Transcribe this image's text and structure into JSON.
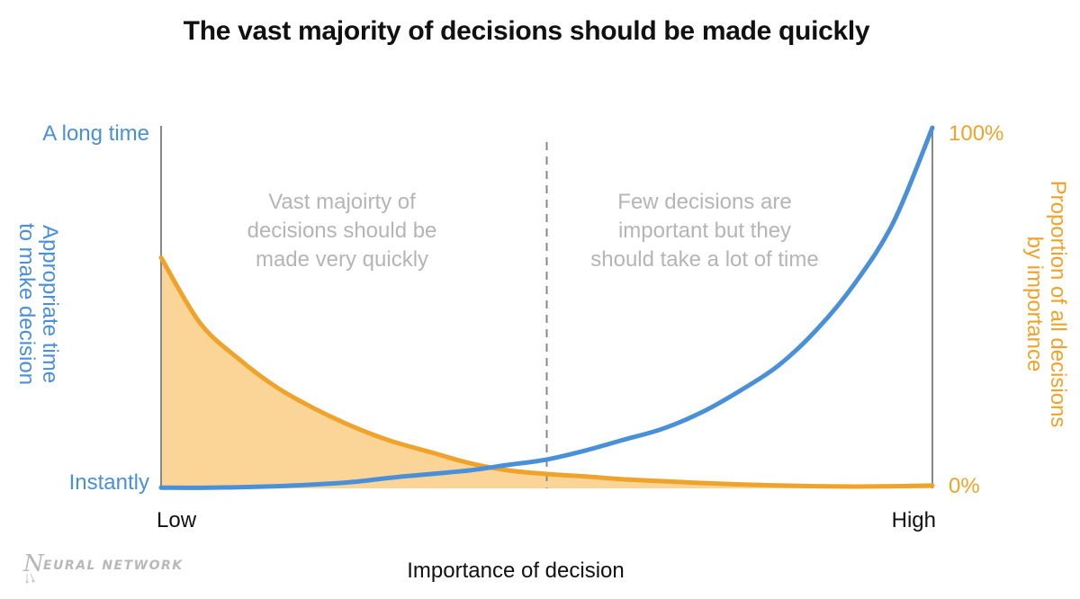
{
  "title": "The vast majority of decisions should be made quickly",
  "colors": {
    "time": "#4a90d9",
    "proportion": "#f0a32a",
    "fill": "#fbd598",
    "annotation": "#b5b5b5",
    "axis": "#888888"
  },
  "chart_data": {
    "type": "line",
    "title": "The vast majority of decisions should be made quickly",
    "xlabel": "Importance of decision",
    "x_tick_labels": [
      "Low",
      "High"
    ],
    "x": [
      0,
      0.05,
      0.1,
      0.15,
      0.2,
      0.25,
      0.3,
      0.35,
      0.4,
      0.45,
      0.5,
      0.55,
      0.6,
      0.65,
      0.7,
      0.75,
      0.8,
      0.85,
      0.9,
      0.95,
      1.0
    ],
    "y_left": {
      "label_lines": [
        "Appropriate time",
        "to make decision"
      ],
      "tick_labels": [
        "Instantly",
        "A long time"
      ]
    },
    "y_right": {
      "label_lines": [
        "Proportion of all decisions",
        "by importance"
      ],
      "tick_labels": [
        "0%",
        "100%"
      ]
    },
    "series": [
      {
        "axis": "left",
        "values": [
          0.002,
          0.0015,
          0.003,
          0.006,
          0.011,
          0.018,
          0.03,
          0.04,
          0.05,
          0.065,
          0.08,
          0.105,
          0.135,
          0.165,
          0.21,
          0.27,
          0.34,
          0.44,
          0.57,
          0.74,
          1.0
        ]
      },
      {
        "axis": "right",
        "values": [
          0.64,
          0.46,
          0.36,
          0.28,
          0.22,
          0.17,
          0.13,
          0.1,
          0.07,
          0.05,
          0.04,
          0.033,
          0.025,
          0.02,
          0.015,
          0.011,
          0.008,
          0.006,
          0.005,
          0.006,
          0.008
        ]
      }
    ],
    "divider_x": 0.5,
    "annotations": [
      {
        "lines": [
          "Vast majoirty of",
          "decisions should be",
          "made very quickly"
        ]
      },
      {
        "lines": [
          "Few decisions are",
          "important but they",
          "should take a lot of time"
        ]
      }
    ]
  },
  "logo": {
    "text": "EURAL NETWORK",
    "mark": "N"
  }
}
